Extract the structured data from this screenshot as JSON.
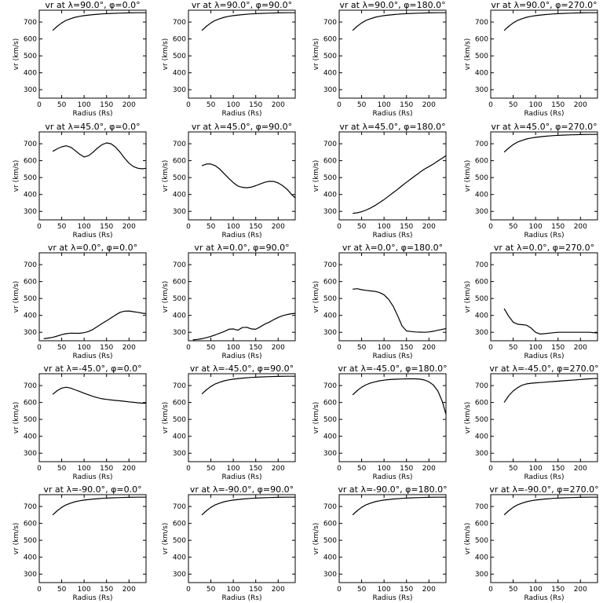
{
  "figure": {
    "x_ticks": [
      "0",
      "50",
      "100",
      "150",
      "200"
    ],
    "y_ticks": [
      "300",
      "400",
      "500",
      "600",
      "700"
    ]
  },
  "chart_data": [
    {
      "type": "line",
      "title": "vr at λ=90.0°, φ=0.0°",
      "xlabel": "Radius (Rs)",
      "ylabel": "vr (km/s)",
      "xlim": [
        0,
        238
      ],
      "ylim": [
        250,
        770
      ],
      "x": [
        30,
        40,
        50,
        60,
        70,
        80,
        90,
        100,
        120,
        140,
        160,
        180,
        200,
        220,
        238
      ],
      "series": [
        {
          "values": [
            650,
            675,
            695,
            710,
            720,
            728,
            734,
            738,
            744,
            748,
            751,
            753,
            754,
            755,
            755
          ]
        }
      ]
    },
    {
      "type": "line",
      "title": "vr at λ=90.0°, φ=90.0°",
      "xlabel": "Radius (Rs)",
      "ylabel": "vr (km/s)",
      "xlim": [
        0,
        238
      ],
      "ylim": [
        250,
        770
      ],
      "x": [
        30,
        40,
        50,
        60,
        70,
        80,
        90,
        100,
        120,
        140,
        160,
        180,
        200,
        220,
        238
      ],
      "series": [
        {
          "values": [
            650,
            675,
            695,
            710,
            720,
            728,
            734,
            738,
            744,
            748,
            751,
            753,
            754,
            755,
            755
          ]
        }
      ]
    },
    {
      "type": "line",
      "title": "vr at λ=90.0°, φ=180.0°",
      "xlabel": "Radius (Rs)",
      "ylabel": "vr (km/s)",
      "xlim": [
        0,
        238
      ],
      "ylim": [
        250,
        770
      ],
      "x": [
        30,
        40,
        50,
        60,
        70,
        80,
        90,
        100,
        120,
        140,
        160,
        180,
        200,
        220,
        238
      ],
      "series": [
        {
          "values": [
            650,
            675,
            695,
            710,
            720,
            728,
            734,
            738,
            744,
            748,
            751,
            753,
            754,
            755,
            755
          ]
        }
      ]
    },
    {
      "type": "line",
      "title": "vr at λ=90.0°, φ=270.0°",
      "xlabel": "Radius (Rs)",
      "ylabel": "vr (km/s)",
      "xlim": [
        0,
        238
      ],
      "ylim": [
        250,
        770
      ],
      "x": [
        30,
        40,
        50,
        60,
        70,
        80,
        90,
        100,
        120,
        140,
        160,
        180,
        200,
        220,
        238
      ],
      "series": [
        {
          "values": [
            650,
            675,
            695,
            710,
            720,
            728,
            734,
            738,
            744,
            748,
            751,
            753,
            754,
            755,
            755
          ]
        }
      ]
    },
    {
      "type": "line",
      "title": "vr at λ=45.0°, φ=0.0°",
      "xlabel": "Radius (Rs)",
      "ylabel": "vr (km/s)",
      "xlim": [
        0,
        238
      ],
      "ylim": [
        250,
        770
      ],
      "x": [
        30,
        40,
        50,
        60,
        70,
        80,
        90,
        100,
        110,
        120,
        130,
        140,
        150,
        160,
        170,
        180,
        190,
        200,
        210,
        220,
        230,
        238
      ],
      "series": [
        {
          "values": [
            655,
            670,
            682,
            688,
            680,
            660,
            638,
            622,
            630,
            650,
            675,
            695,
            705,
            700,
            680,
            650,
            615,
            585,
            565,
            555,
            552,
            555
          ]
        }
      ]
    },
    {
      "type": "line",
      "title": "vr at λ=45.0°, φ=90.0°",
      "xlabel": "Radius (Rs)",
      "ylabel": "vr (km/s)",
      "xlim": [
        0,
        238
      ],
      "ylim": [
        250,
        770
      ],
      "x": [
        30,
        40,
        50,
        60,
        70,
        80,
        90,
        100,
        110,
        120,
        130,
        140,
        150,
        160,
        170,
        180,
        190,
        200,
        210,
        220,
        230,
        238
      ],
      "series": [
        {
          "values": [
            570,
            580,
            580,
            570,
            550,
            522,
            495,
            470,
            450,
            442,
            440,
            443,
            452,
            462,
            472,
            478,
            477,
            468,
            452,
            430,
            400,
            380
          ]
        }
      ]
    },
    {
      "type": "line",
      "title": "vr at λ=45.0°, φ=180.0°",
      "xlabel": "Radius (Rs)",
      "ylabel": "vr (km/s)",
      "xlim": [
        0,
        238
      ],
      "ylim": [
        250,
        770
      ],
      "x": [
        30,
        40,
        50,
        60,
        70,
        80,
        90,
        100,
        110,
        120,
        130,
        140,
        150,
        160,
        170,
        180,
        190,
        200,
        210,
        220,
        230,
        238
      ],
      "series": [
        {
          "values": [
            288,
            292,
            298,
            308,
            320,
            335,
            352,
            370,
            390,
            410,
            430,
            452,
            472,
            492,
            512,
            532,
            550,
            565,
            580,
            598,
            615,
            630
          ]
        }
      ]
    },
    {
      "type": "line",
      "title": "vr at λ=45.0°, φ=270.0°",
      "xlabel": "Radius (Rs)",
      "ylabel": "vr (km/s)",
      "xlim": [
        0,
        238
      ],
      "ylim": [
        250,
        770
      ],
      "x": [
        30,
        40,
        50,
        60,
        70,
        80,
        90,
        100,
        120,
        140,
        160,
        180,
        200,
        220,
        238
      ],
      "series": [
        {
          "values": [
            650,
            675,
            695,
            710,
            720,
            728,
            734,
            738,
            744,
            748,
            751,
            753,
            754,
            755,
            755
          ]
        }
      ]
    },
    {
      "type": "line",
      "title": "vr at λ=0.0°, φ=0.0°",
      "xlabel": "Radius (Rs)",
      "ylabel": "vr (km/s)",
      "xlim": [
        0,
        238
      ],
      "ylim": [
        250,
        770
      ],
      "x": [
        10,
        20,
        30,
        40,
        50,
        60,
        70,
        80,
        90,
        100,
        110,
        120,
        130,
        140,
        150,
        160,
        170,
        180,
        190,
        200,
        210,
        220,
        230,
        238
      ],
      "series": [
        {
          "values": [
            262,
            266,
            270,
            278,
            286,
            292,
            295,
            294,
            294,
            298,
            305,
            318,
            335,
            352,
            368,
            385,
            402,
            418,
            425,
            426,
            422,
            418,
            413,
            410
          ]
        }
      ]
    },
    {
      "type": "line",
      "title": "vr at λ=0.0°, φ=90.0°",
      "xlabel": "Radius (Rs)",
      "ylabel": "vr (km/s)",
      "xlim": [
        0,
        238
      ],
      "ylim": [
        250,
        770
      ],
      "x": [
        10,
        20,
        30,
        40,
        50,
        60,
        70,
        80,
        90,
        100,
        110,
        120,
        130,
        140,
        150,
        160,
        170,
        180,
        190,
        200,
        210,
        220,
        230,
        238
      ],
      "series": [
        {
          "values": [
            255,
            258,
            262,
            268,
            276,
            285,
            295,
            305,
            318,
            320,
            312,
            328,
            330,
            320,
            318,
            332,
            348,
            360,
            375,
            388,
            398,
            405,
            410,
            412
          ]
        }
      ]
    },
    {
      "type": "line",
      "title": "vr at λ=0.0°, φ=180.0°",
      "xlabel": "Radius (Rs)",
      "ylabel": "vr (km/s)",
      "xlim": [
        0,
        238
      ],
      "ylim": [
        250,
        770
      ],
      "x": [
        30,
        40,
        50,
        60,
        70,
        80,
        90,
        100,
        110,
        120,
        130,
        140,
        150,
        160,
        170,
        180,
        190,
        200,
        210,
        220,
        230,
        238
      ],
      "series": [
        {
          "values": [
            555,
            558,
            552,
            548,
            545,
            542,
            535,
            522,
            495,
            455,
            400,
            338,
            308,
            305,
            302,
            301,
            300,
            302,
            306,
            312,
            318,
            322
          ]
        }
      ]
    },
    {
      "type": "line",
      "title": "vr at λ=0.0°, φ=270.0°",
      "xlabel": "Radius (Rs)",
      "ylabel": "vr (km/s)",
      "xlim": [
        0,
        238
      ],
      "ylim": [
        250,
        770
      ],
      "x": [
        30,
        40,
        50,
        60,
        70,
        80,
        90,
        100,
        110,
        120,
        130,
        140,
        150,
        160,
        170,
        180,
        190,
        200,
        210,
        220,
        230,
        238
      ],
      "series": [
        {
          "values": [
            440,
            395,
            360,
            348,
            345,
            342,
            325,
            300,
            290,
            292,
            295,
            298,
            300,
            300,
            300,
            300,
            300,
            300,
            300,
            300,
            298,
            296
          ]
        }
      ]
    },
    {
      "type": "line",
      "title": "vr at λ=-45.0°, φ=0.0°",
      "xlabel": "Radius (Rs)",
      "ylabel": "vr (km/s)",
      "xlim": [
        0,
        238
      ],
      "ylim": [
        250,
        770
      ],
      "x": [
        30,
        40,
        50,
        60,
        70,
        80,
        90,
        100,
        110,
        120,
        130,
        140,
        150,
        160,
        170,
        180,
        190,
        200,
        210,
        220,
        230,
        238
      ],
      "series": [
        {
          "values": [
            648,
            670,
            685,
            690,
            685,
            675,
            665,
            655,
            645,
            636,
            628,
            622,
            618,
            615,
            612,
            610,
            607,
            604,
            601,
            598,
            596,
            596
          ]
        }
      ]
    },
    {
      "type": "line",
      "title": "vr at λ=-45.0°, φ=90.0°",
      "xlabel": "Radius (Rs)",
      "ylabel": "vr (km/s)",
      "xlim": [
        0,
        238
      ],
      "ylim": [
        250,
        770
      ],
      "x": [
        30,
        40,
        50,
        60,
        70,
        80,
        90,
        100,
        120,
        140,
        160,
        180,
        200,
        220,
        238
      ],
      "series": [
        {
          "values": [
            650,
            675,
            695,
            710,
            720,
            728,
            734,
            738,
            744,
            748,
            751,
            753,
            754,
            755,
            755
          ]
        }
      ]
    },
    {
      "type": "line",
      "title": "vr at λ=-45.0°, φ=180.0°",
      "xlabel": "Radius (Rs)",
      "ylabel": "vr (km/s)",
      "xlim": [
        0,
        238
      ],
      "ylim": [
        250,
        770
      ],
      "x": [
        30,
        40,
        50,
        60,
        70,
        80,
        90,
        100,
        110,
        120,
        130,
        140,
        150,
        160,
        170,
        180,
        190,
        200,
        210,
        220,
        230,
        238
      ],
      "series": [
        {
          "values": [
            645,
            670,
            690,
            705,
            715,
            722,
            728,
            732,
            735,
            737,
            738,
            739,
            740,
            740,
            740,
            738,
            733,
            722,
            703,
            668,
            605,
            530
          ]
        }
      ]
    },
    {
      "type": "line",
      "title": "vr at λ=-45.0°, φ=270.0°",
      "xlabel": "Radius (Rs)",
      "ylabel": "vr (km/s)",
      "xlim": [
        0,
        238
      ],
      "ylim": [
        250,
        770
      ],
      "x": [
        30,
        40,
        50,
        60,
        70,
        80,
        90,
        100,
        110,
        120,
        130,
        140,
        150,
        160,
        170,
        180,
        190,
        200,
        210,
        220,
        230,
        238
      ],
      "series": [
        {
          "values": [
            600,
            640,
            668,
            688,
            702,
            710,
            714,
            716,
            718,
            720,
            722,
            724,
            726,
            728,
            730,
            732,
            734,
            736,
            738,
            740,
            741,
            742
          ]
        }
      ]
    },
    {
      "type": "line",
      "title": "vr at λ=-90.0°, φ=0.0°",
      "xlabel": "Radius (Rs)",
      "ylabel": "vr (km/s)",
      "xlim": [
        0,
        238
      ],
      "ylim": [
        250,
        770
      ],
      "x": [
        30,
        40,
        50,
        60,
        70,
        80,
        90,
        100,
        120,
        140,
        160,
        180,
        200,
        220,
        238
      ],
      "series": [
        {
          "values": [
            650,
            675,
            695,
            710,
            720,
            728,
            734,
            738,
            744,
            748,
            751,
            753,
            754,
            755,
            755
          ]
        }
      ]
    },
    {
      "type": "line",
      "title": "vr at λ=-90.0°, φ=90.0°",
      "xlabel": "Radius (Rs)",
      "ylabel": "vr (km/s)",
      "xlim": [
        0,
        238
      ],
      "ylim": [
        250,
        770
      ],
      "x": [
        30,
        40,
        50,
        60,
        70,
        80,
        90,
        100,
        120,
        140,
        160,
        180,
        200,
        220,
        238
      ],
      "series": [
        {
          "values": [
            650,
            675,
            695,
            710,
            720,
            728,
            734,
            738,
            744,
            748,
            751,
            753,
            754,
            755,
            755
          ]
        }
      ]
    },
    {
      "type": "line",
      "title": "vr at λ=-90.0°, φ=180.0°",
      "xlabel": "Radius (Rs)",
      "ylabel": "vr (km/s)",
      "xlim": [
        0,
        238
      ],
      "ylim": [
        250,
        770
      ],
      "x": [
        30,
        40,
        50,
        60,
        70,
        80,
        90,
        100,
        120,
        140,
        160,
        180,
        200,
        220,
        238
      ],
      "series": [
        {
          "values": [
            650,
            675,
            695,
            710,
            720,
            728,
            734,
            738,
            744,
            748,
            751,
            753,
            754,
            755,
            755
          ]
        }
      ]
    },
    {
      "type": "line",
      "title": "vr at λ=-90.0°, φ=270.0°",
      "xlabel": "Radius (Rs)",
      "ylabel": "vr (km/s)",
      "xlim": [
        0,
        238
      ],
      "ylim": [
        250,
        770
      ],
      "x": [
        30,
        40,
        50,
        60,
        70,
        80,
        90,
        100,
        120,
        140,
        160,
        180,
        200,
        220,
        238
      ],
      "series": [
        {
          "values": [
            650,
            675,
            695,
            710,
            720,
            728,
            734,
            738,
            744,
            748,
            751,
            753,
            754,
            755,
            755
          ]
        }
      ]
    }
  ]
}
